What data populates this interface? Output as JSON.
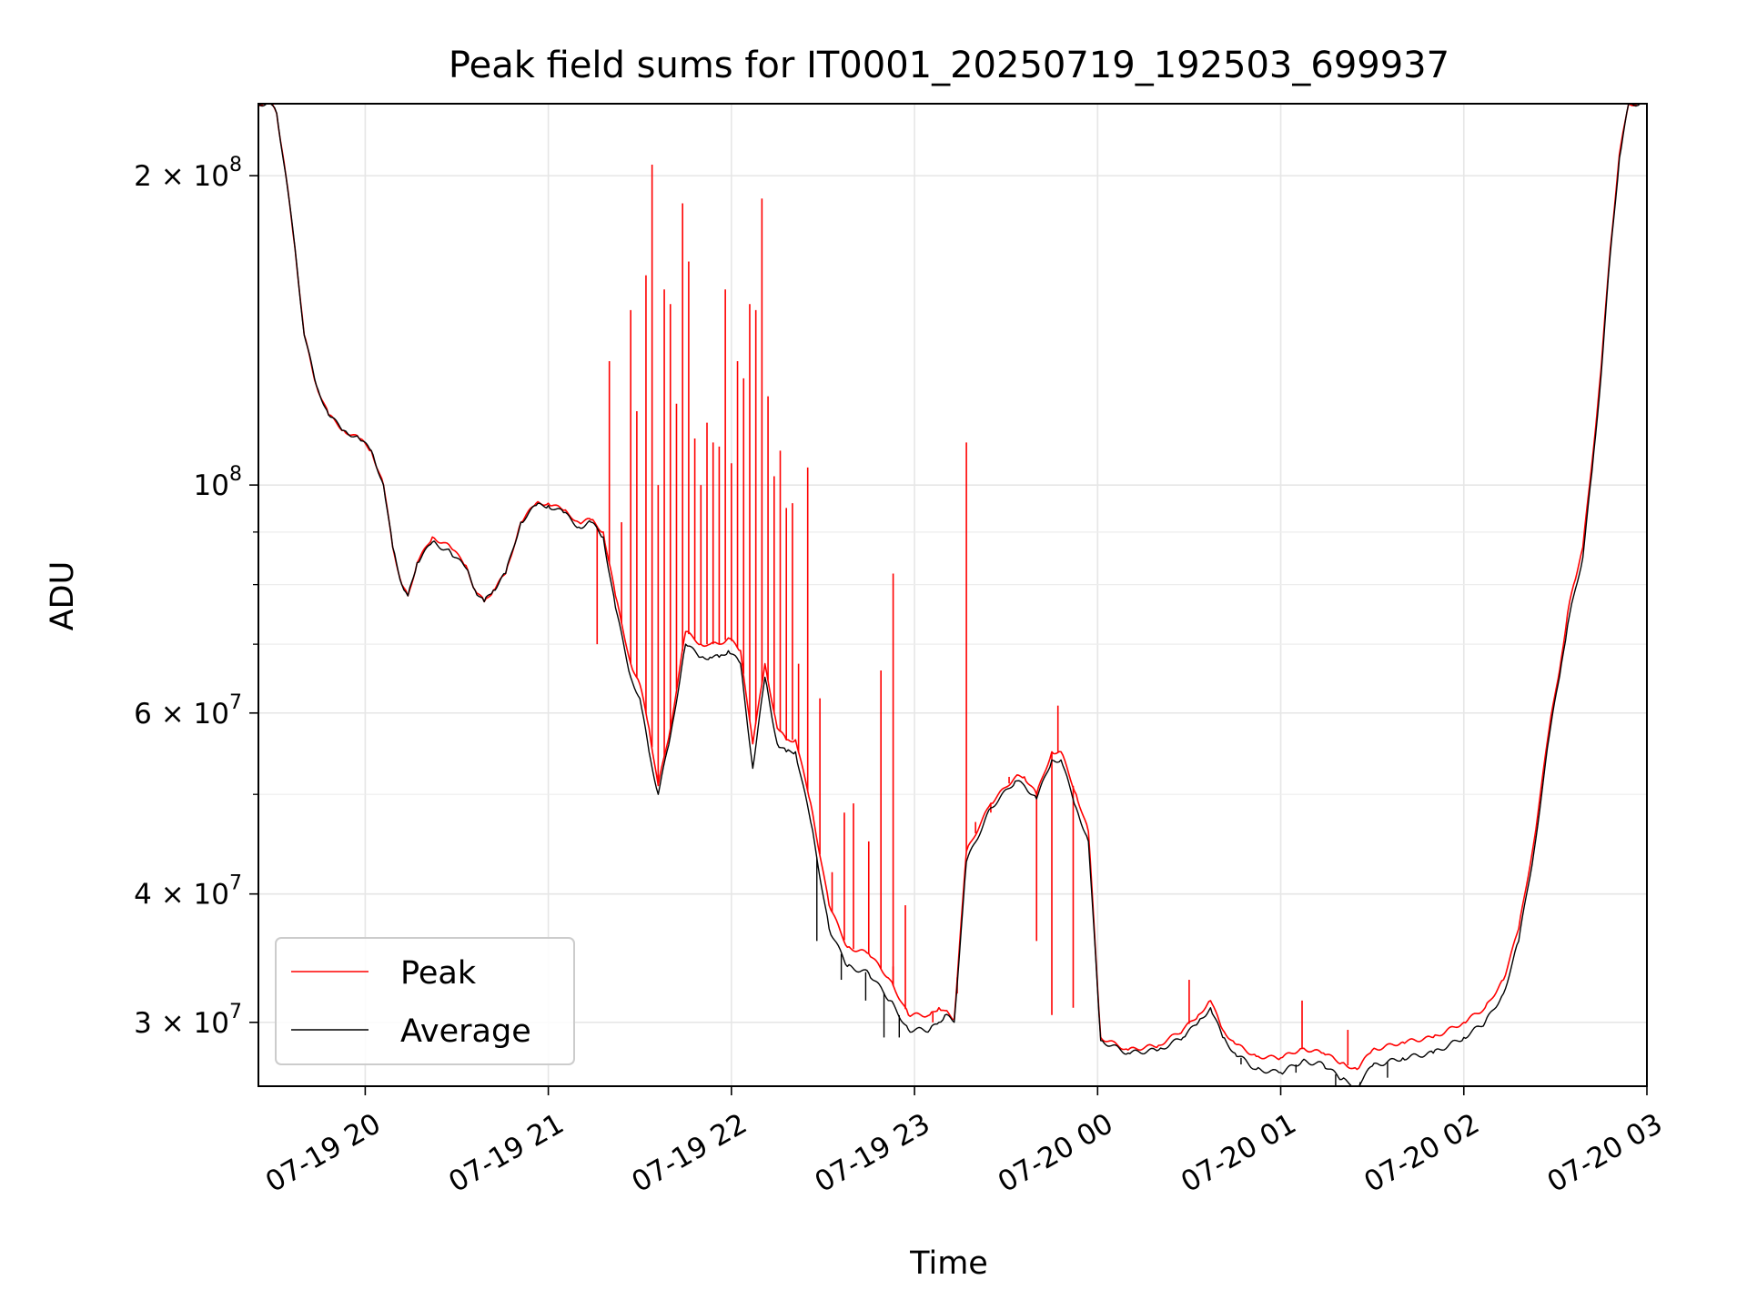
{
  "chart_data": {
    "type": "line",
    "title": "Peak field sums for IT0001_20250719_192503_699937",
    "xlabel": "Time",
    "ylabel": "ADU",
    "yscale": "log",
    "grid": true,
    "legend_position": "lower-left",
    "xlim": [
      "2025-07-19 19:25",
      "2025-07-20 03:00"
    ],
    "ylim": [
      26000000,
      235000000
    ],
    "x_ticks": [
      "07-19 20",
      "07-19 21",
      "07-19 22",
      "07-19 23",
      "07-20 00",
      "07-20 01",
      "07-20 02",
      "07-20 03"
    ],
    "x_tick_times": [
      "2025-07-19 20:00",
      "2025-07-19 21:00",
      "2025-07-19 22:00",
      "2025-07-19 23:00",
      "2025-07-20 00:00",
      "2025-07-20 01:00",
      "2025-07-20 02:00",
      "2025-07-20 03:00"
    ],
    "y_ticks": [
      {
        "value": 200000000,
        "mantissa": "2 × 10",
        "exp": "8"
      },
      {
        "value": 100000000,
        "mantissa": "10",
        "exp": "8"
      },
      {
        "value": 60000000,
        "mantissa": "6 × 10",
        "exp": "7"
      },
      {
        "value": 40000000,
        "mantissa": "4 × 10",
        "exp": "7"
      },
      {
        "value": 30000000,
        "mantissa": "3 × 10",
        "exp": "7"
      }
    ],
    "y_minor_ticks": [
      90000000,
      80000000,
      70000000,
      50000000
    ],
    "series": [
      {
        "name": "Peak",
        "color": "#ff0000",
        "baseline_x": [
          "2025-07-19 19:25",
          "2025-07-19 19:29",
          "2025-07-19 19:31",
          "2025-07-19 19:34",
          "2025-07-19 19:37",
          "2025-07-19 19:40",
          "2025-07-19 19:44",
          "2025-07-19 19:48",
          "2025-07-19 19:53",
          "2025-07-19 19:58",
          "2025-07-19 20:02",
          "2025-07-19 20:06",
          "2025-07-19 20:09",
          "2025-07-19 20:12",
          "2025-07-19 20:14",
          "2025-07-19 20:17",
          "2025-07-19 20:22",
          "2025-07-19 20:28",
          "2025-07-19 20:33",
          "2025-07-19 20:36",
          "2025-07-19 20:39",
          "2025-07-19 20:42",
          "2025-07-19 20:46",
          "2025-07-19 20:51",
          "2025-07-19 20:56",
          "2025-07-19 21:00",
          "2025-07-19 21:05",
          "2025-07-19 21:10",
          "2025-07-19 21:14",
          "2025-07-19 21:18",
          "2025-07-19 21:22",
          "2025-07-19 21:27",
          "2025-07-19 21:30",
          "2025-07-19 21:33",
          "2025-07-19 21:36",
          "2025-07-19 21:40",
          "2025-07-19 21:45",
          "2025-07-19 21:50",
          "2025-07-19 21:53",
          "2025-07-19 21:56",
          "2025-07-19 21:59",
          "2025-07-19 22:03",
          "2025-07-19 22:07",
          "2025-07-19 22:11",
          "2025-07-19 22:15",
          "2025-07-19 22:18",
          "2025-07-19 22:21",
          "2025-07-19 22:26",
          "2025-07-19 22:32",
          "2025-07-19 22:38",
          "2025-07-19 22:45",
          "2025-07-19 22:52",
          "2025-07-19 22:58",
          "2025-07-19 23:05",
          "2025-07-19 23:08",
          "2025-07-19 23:10",
          "2025-07-19 23:13",
          "2025-07-19 23:17",
          "2025-07-19 23:25",
          "2025-07-19 23:33",
          "2025-07-19 23:36",
          "2025-07-19 23:40",
          "2025-07-19 23:45",
          "2025-07-19 23:48",
          "2025-07-19 23:53",
          "2025-07-19 23:57",
          "2025-07-20 00:01",
          "2025-07-20 00:10",
          "2025-07-20 00:20",
          "2025-07-20 00:28",
          "2025-07-20 00:33",
          "2025-07-20 00:37",
          "2025-07-20 00:41",
          "2025-07-20 00:45",
          "2025-07-20 00:52",
          "2025-07-20 01:00",
          "2025-07-20 01:07",
          "2025-07-20 01:14",
          "2025-07-20 01:20",
          "2025-07-20 01:25",
          "2025-07-20 01:30",
          "2025-07-20 01:40",
          "2025-07-20 01:50",
          "2025-07-20 02:00",
          "2025-07-20 02:07",
          "2025-07-20 02:13",
          "2025-07-20 02:18",
          "2025-07-20 02:23",
          "2025-07-20 02:28",
          "2025-07-20 02:32",
          "2025-07-20 02:34",
          "2025-07-20 02:36",
          "2025-07-20 02:39",
          "2025-07-20 02:42",
          "2025-07-20 02:45",
          "2025-07-20 02:48",
          "2025-07-20 02:51",
          "2025-07-20 02:54",
          "2025-07-20 03:00"
        ],
        "baseline_y": [
          235000000,
          235000000,
          230000000,
          200000000,
          170000000,
          140000000,
          125000000,
          117000000,
          113000000,
          111000000,
          108000000,
          100000000,
          87000000,
          80000000,
          78000000,
          84000000,
          89000000,
          87000000,
          83500000,
          79000000,
          77000000,
          79000000,
          82000000,
          92000000,
          96000000,
          96000000,
          94500000,
          92000000,
          92500000,
          90000000,
          78000000,
          67000000,
          64000000,
          58000000,
          51000000,
          58000000,
          72000000,
          70000000,
          70000000,
          70000000,
          71000000,
          69000000,
          56000000,
          67000000,
          58000000,
          56500000,
          56500000,
          49000000,
          39000000,
          35500000,
          35000000,
          33000000,
          30500000,
          30500000,
          31000000,
          30800000,
          30200000,
          44000000,
          49000000,
          52000000,
          52000000,
          50000000,
          55000000,
          55000000,
          50000000,
          46000000,
          29000000,
          28200000,
          28500000,
          29500000,
          30500000,
          31500000,
          29500000,
          28600000,
          27800000,
          27700000,
          28300000,
          28000000,
          27400000,
          27000000,
          28200000,
          28700000,
          29000000,
          30000000,
          31000000,
          33000000,
          37000000,
          45000000,
          58000000,
          68000000,
          75000000,
          80000000,
          87000000,
          105000000,
          130000000,
          170000000,
          210000000,
          235000000,
          235000000
        ],
        "spikes": [
          {
            "x": "2025-07-19 21:16",
            "y": 70000000
          },
          {
            "x": "2025-07-19 21:20",
            "y": 132000000
          },
          {
            "x": "2025-07-19 21:24",
            "y": 92000000
          },
          {
            "x": "2025-07-19 21:27",
            "y": 148000000
          },
          {
            "x": "2025-07-19 21:29",
            "y": 118000000
          },
          {
            "x": "2025-07-19 21:32",
            "y": 160000000
          },
          {
            "x": "2025-07-19 21:34",
            "y": 205000000
          },
          {
            "x": "2025-07-19 21:36",
            "y": 100000000
          },
          {
            "x": "2025-07-19 21:38",
            "y": 155000000
          },
          {
            "x": "2025-07-19 21:40",
            "y": 150000000
          },
          {
            "x": "2025-07-19 21:42",
            "y": 120000000
          },
          {
            "x": "2025-07-19 21:44",
            "y": 188000000
          },
          {
            "x": "2025-07-19 21:46",
            "y": 165000000
          },
          {
            "x": "2025-07-19 21:48",
            "y": 111000000
          },
          {
            "x": "2025-07-19 21:50",
            "y": 100000000
          },
          {
            "x": "2025-07-19 21:52",
            "y": 115000000
          },
          {
            "x": "2025-07-19 21:54",
            "y": 110000000
          },
          {
            "x": "2025-07-19 21:56",
            "y": 109000000
          },
          {
            "x": "2025-07-19 21:58",
            "y": 155000000
          },
          {
            "x": "2025-07-19 22:00",
            "y": 105000000
          },
          {
            "x": "2025-07-19 22:02",
            "y": 132000000
          },
          {
            "x": "2025-07-19 22:04",
            "y": 127000000
          },
          {
            "x": "2025-07-19 22:06",
            "y": 150000000
          },
          {
            "x": "2025-07-19 22:08",
            "y": 148000000
          },
          {
            "x": "2025-07-19 22:10",
            "y": 190000000
          },
          {
            "x": "2025-07-19 22:12",
            "y": 122000000
          },
          {
            "x": "2025-07-19 22:14",
            "y": 102000000
          },
          {
            "x": "2025-07-19 22:16",
            "y": 108000000
          },
          {
            "x": "2025-07-19 22:18",
            "y": 95000000
          },
          {
            "x": "2025-07-19 22:20",
            "y": 96000000
          },
          {
            "x": "2025-07-19 22:22",
            "y": 67000000
          },
          {
            "x": "2025-07-19 22:25",
            "y": 104000000
          },
          {
            "x": "2025-07-19 22:29",
            "y": 62000000
          },
          {
            "x": "2025-07-19 22:33",
            "y": 42000000
          },
          {
            "x": "2025-07-19 22:37",
            "y": 48000000
          },
          {
            "x": "2025-07-19 22:40",
            "y": 49000000
          },
          {
            "x": "2025-07-19 22:45",
            "y": 45000000
          },
          {
            "x": "2025-07-19 22:49",
            "y": 66000000
          },
          {
            "x": "2025-07-19 22:53",
            "y": 34000000
          },
          {
            "x": "2025-07-19 22:57",
            "y": 39000000
          },
          {
            "x": "2025-07-19 23:06",
            "y": 30000000
          },
          {
            "x": "2025-07-19 23:14",
            "y": 32000000
          },
          {
            "x": "2025-07-19 23:20",
            "y": 47000000
          },
          {
            "x": "2025-07-19 23:25",
            "y": 48000000
          },
          {
            "x": "2025-07-19 23:31",
            "y": 52000000
          },
          {
            "x": "2025-07-19 23:40",
            "y": 36000000
          },
          {
            "x": "2025-07-19 23:45",
            "y": 30500000
          },
          {
            "x": "2025-07-19 23:52",
            "y": 31000000
          }
        ],
        "noted_points": [
          {
            "x": "2025-07-19 22:53",
            "y": 82000000
          },
          {
            "x": "2025-07-19 23:17",
            "y": 110000000
          },
          {
            "x": "2025-07-19 23:47",
            "y": 61000000
          },
          {
            "x": "2025-07-20 00:30",
            "y": 33000000
          },
          {
            "x": "2025-07-20 01:07",
            "y": 31500000
          },
          {
            "x": "2025-07-20 01:22",
            "y": 29500000
          }
        ]
      },
      {
        "name": "Average",
        "color": "#000000",
        "baseline_x": [
          "2025-07-19 19:25",
          "2025-07-19 19:29",
          "2025-07-19 19:31",
          "2025-07-19 19:34",
          "2025-07-19 19:37",
          "2025-07-19 19:40",
          "2025-07-19 19:44",
          "2025-07-19 19:48",
          "2025-07-19 19:53",
          "2025-07-19 19:58",
          "2025-07-19 20:02",
          "2025-07-19 20:06",
          "2025-07-19 20:09",
          "2025-07-19 20:12",
          "2025-07-19 20:14",
          "2025-07-19 20:17",
          "2025-07-19 20:22",
          "2025-07-19 20:28",
          "2025-07-19 20:33",
          "2025-07-19 20:36",
          "2025-07-19 20:39",
          "2025-07-19 20:42",
          "2025-07-19 20:46",
          "2025-07-19 20:51",
          "2025-07-19 20:56",
          "2025-07-19 21:00",
          "2025-07-19 21:05",
          "2025-07-19 21:10",
          "2025-07-19 21:14",
          "2025-07-19 21:18",
          "2025-07-19 21:22",
          "2025-07-19 21:27",
          "2025-07-19 21:30",
          "2025-07-19 21:33",
          "2025-07-19 21:36",
          "2025-07-19 21:40",
          "2025-07-19 21:45",
          "2025-07-19 21:50",
          "2025-07-19 21:53",
          "2025-07-19 21:56",
          "2025-07-19 21:59",
          "2025-07-19 22:03",
          "2025-07-19 22:07",
          "2025-07-19 22:11",
          "2025-07-19 22:15",
          "2025-07-19 22:18",
          "2025-07-19 22:21",
          "2025-07-19 22:26",
          "2025-07-19 22:32",
          "2025-07-19 22:38",
          "2025-07-19 22:45",
          "2025-07-19 22:52",
          "2025-07-19 22:58",
          "2025-07-19 23:05",
          "2025-07-19 23:08",
          "2025-07-19 23:10",
          "2025-07-19 23:13",
          "2025-07-19 23:17",
          "2025-07-19 23:25",
          "2025-07-19 23:33",
          "2025-07-19 23:36",
          "2025-07-19 23:40",
          "2025-07-19 23:45",
          "2025-07-19 23:48",
          "2025-07-19 23:53",
          "2025-07-19 23:57",
          "2025-07-20 00:01",
          "2025-07-20 00:10",
          "2025-07-20 00:20",
          "2025-07-20 00:28",
          "2025-07-20 00:33",
          "2025-07-20 00:37",
          "2025-07-20 00:41",
          "2025-07-20 00:45",
          "2025-07-20 00:52",
          "2025-07-20 01:00",
          "2025-07-20 01:07",
          "2025-07-20 01:14",
          "2025-07-20 01:20",
          "2025-07-20 01:25",
          "2025-07-20 01:30",
          "2025-07-20 01:40",
          "2025-07-20 01:50",
          "2025-07-20 02:00",
          "2025-07-20 02:07",
          "2025-07-20 02:13",
          "2025-07-20 02:18",
          "2025-07-20 02:23",
          "2025-07-20 02:28",
          "2025-07-20 02:32",
          "2025-07-20 02:34",
          "2025-07-20 02:36",
          "2025-07-20 02:39",
          "2025-07-20 02:42",
          "2025-07-20 02:45",
          "2025-07-20 02:48",
          "2025-07-20 02:51",
          "2025-07-20 02:54",
          "2025-07-20 03:00"
        ],
        "baseline_y": [
          235000000,
          235000000,
          230000000,
          200000000,
          170000000,
          140000000,
          125000000,
          117000000,
          113000000,
          111000000,
          108000000,
          100000000,
          87000000,
          80000000,
          78000000,
          84000000,
          88000000,
          86000000,
          83000000,
          79000000,
          77000000,
          79000000,
          82000000,
          92000000,
          95500000,
          95500000,
          94000000,
          91000000,
          92000000,
          89000000,
          76000000,
          65000000,
          62000000,
          55000000,
          50000000,
          57000000,
          70000000,
          68000000,
          68000000,
          68000000,
          69000000,
          67000000,
          53000000,
          65000000,
          56000000,
          55000000,
          55000000,
          47000000,
          37000000,
          34000000,
          33500000,
          31500000,
          29500000,
          29500000,
          30000000,
          30500000,
          30000000,
          43000000,
          48500000,
          51500000,
          51000000,
          49500000,
          54000000,
          54000000,
          48500000,
          45000000,
          28800000,
          28000000,
          28200000,
          29000000,
          30000000,
          31000000,
          29000000,
          28000000,
          27000000,
          26800000,
          27500000,
          27300000,
          26400000,
          26000000,
          27200000,
          27700000,
          28000000,
          29000000,
          30000000,
          32000000,
          36000000,
          44000000,
          57000000,
          67000000,
          73000000,
          78000000,
          85000000,
          103000000,
          128000000,
          168000000,
          208000000,
          235000000,
          235000000
        ],
        "dips": [
          {
            "x": "2025-07-19 22:28",
            "y": 36000000
          },
          {
            "x": "2025-07-19 22:36",
            "y": 33000000
          },
          {
            "x": "2025-07-19 22:44",
            "y": 31500000
          },
          {
            "x": "2025-07-19 22:50",
            "y": 29000000
          },
          {
            "x": "2025-07-19 22:55",
            "y": 29000000
          },
          {
            "x": "2025-07-19 23:01",
            "y": 29500000
          },
          {
            "x": "2025-07-20 00:47",
            "y": 27300000
          },
          {
            "x": "2025-07-20 01:05",
            "y": 26800000
          },
          {
            "x": "2025-07-20 01:18",
            "y": 25800000
          },
          {
            "x": "2025-07-20 01:26",
            "y": 25700000
          },
          {
            "x": "2025-07-20 01:35",
            "y": 26500000
          }
        ]
      }
    ]
  }
}
